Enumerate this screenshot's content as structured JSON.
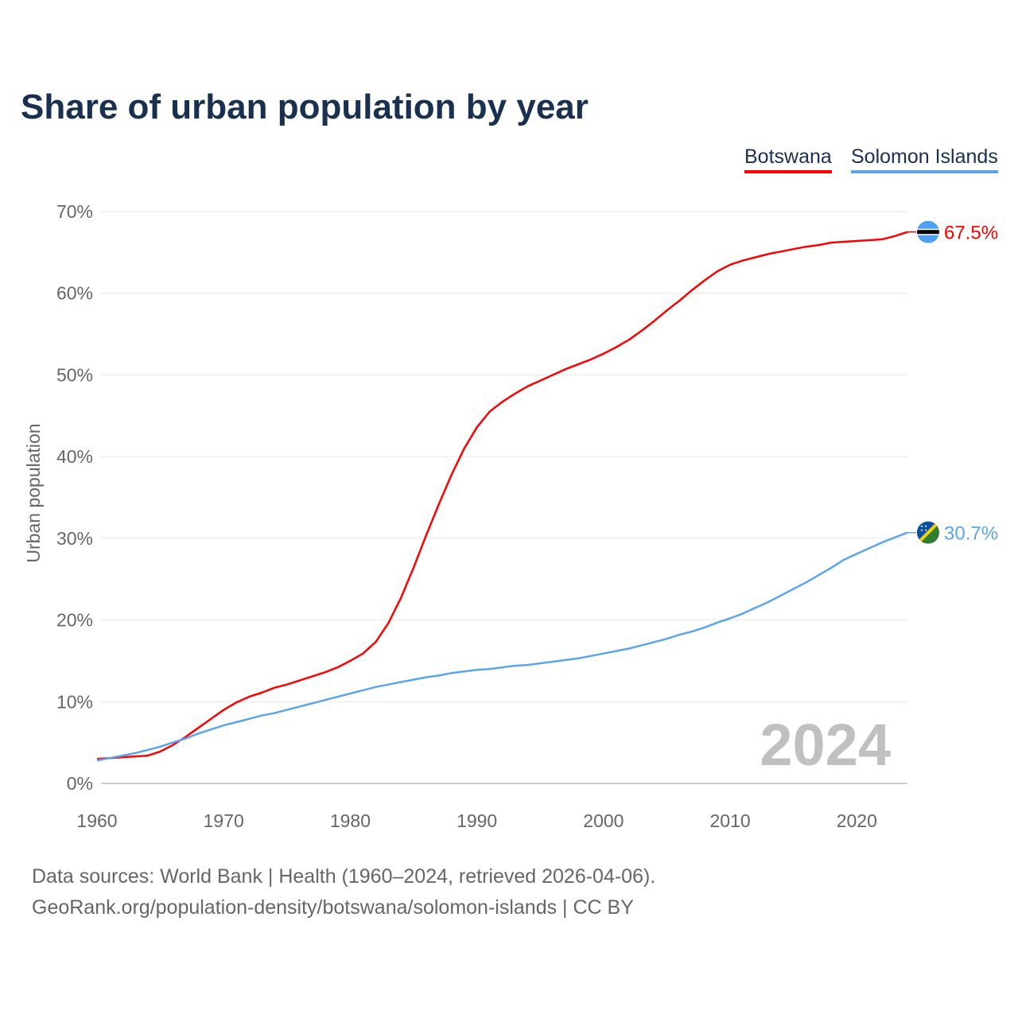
{
  "chart_data": {
    "type": "line",
    "title": "Share of urban population by year",
    "ylabel": "Urban population",
    "xlabel": "",
    "ylim": [
      0,
      70
    ],
    "xlim": [
      1960,
      2024
    ],
    "yticks": [
      "0%",
      "10%",
      "20%",
      "30%",
      "40%",
      "50%",
      "60%",
      "70%"
    ],
    "xticks": [
      "1960",
      "1970",
      "1980",
      "1990",
      "2000",
      "2010",
      "2020"
    ],
    "grid": true,
    "legend_placement": "top-right",
    "year_watermark": "2024",
    "x": [
      1960,
      1961,
      1962,
      1963,
      1964,
      1965,
      1966,
      1967,
      1968,
      1969,
      1970,
      1971,
      1972,
      1973,
      1974,
      1975,
      1976,
      1977,
      1978,
      1979,
      1980,
      1981,
      1982,
      1983,
      1984,
      1985,
      1986,
      1987,
      1988,
      1989,
      1990,
      1991,
      1992,
      1993,
      1994,
      1995,
      1996,
      1997,
      1998,
      1999,
      2000,
      2001,
      2002,
      2003,
      2004,
      2005,
      2006,
      2007,
      2008,
      2009,
      2010,
      2011,
      2012,
      2013,
      2014,
      2015,
      2016,
      2017,
      2018,
      2019,
      2020,
      2021,
      2022,
      2023,
      2024
    ],
    "series": [
      {
        "name": "Botswana",
        "color": "#ff0000",
        "end_label": "67.5%",
        "values": [
          3.0,
          3.1,
          3.2,
          3.3,
          3.4,
          3.9,
          4.7,
          5.7,
          6.8,
          7.9,
          9.0,
          9.9,
          10.6,
          11.1,
          11.7,
          12.1,
          12.6,
          13.1,
          13.6,
          14.2,
          15.0,
          15.9,
          17.3,
          19.6,
          22.7,
          26.4,
          30.4,
          34.2,
          37.8,
          41.0,
          43.6,
          45.5,
          46.7,
          47.7,
          48.6,
          49.3,
          50.0,
          50.7,
          51.3,
          51.9,
          52.6,
          53.4,
          54.3,
          55.4,
          56.6,
          57.9,
          59.1,
          60.4,
          61.6,
          62.7,
          63.5,
          64.0,
          64.4,
          64.8,
          65.1,
          65.4,
          65.7,
          65.9,
          66.2,
          66.3,
          66.4,
          66.5,
          66.6,
          67.0,
          67.5
        ]
      },
      {
        "name": "Solomon Islands",
        "color": "#5aa5ee",
        "end_label": "30.7%",
        "values": [
          2.8,
          3.1,
          3.4,
          3.7,
          4.1,
          4.5,
          5.0,
          5.5,
          6.1,
          6.6,
          7.1,
          7.5,
          7.9,
          8.3,
          8.6,
          9.0,
          9.4,
          9.8,
          10.2,
          10.6,
          11.0,
          11.4,
          11.8,
          12.1,
          12.4,
          12.7,
          13.0,
          13.2,
          13.5,
          13.7,
          13.9,
          14.0,
          14.2,
          14.4,
          14.5,
          14.7,
          14.9,
          15.1,
          15.3,
          15.6,
          15.9,
          16.2,
          16.5,
          16.9,
          17.3,
          17.7,
          18.2,
          18.6,
          19.1,
          19.7,
          20.2,
          20.8,
          21.5,
          22.2,
          23.0,
          23.8,
          24.6,
          25.5,
          26.4,
          27.4,
          28.1,
          28.8,
          29.5,
          30.1,
          30.7
        ]
      }
    ]
  },
  "footer": {
    "line1": "Data sources: World Bank | Health (1960–2024, retrieved 2026-04-06).",
    "line2": "GeoRank.org/population-density/botswana/solomon-islands | CC BY"
  }
}
